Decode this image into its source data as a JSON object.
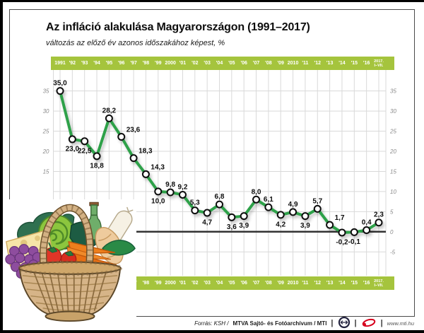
{
  "page": {
    "title": "Az infláció alakulása Magyarországon (1991–2017)",
    "subtitle": "változás az előző év azonos időszakához képest, %"
  },
  "footer": {
    "source_prefix": "Forrás: KSH /",
    "source_bold": "MTVA Sajtó- és Fotóarchívum / MTI",
    "separator": "|",
    "website": "www.mti.hu"
  },
  "icons": {
    "mtva_logo": "mtva-circle-arrows-logo",
    "mti_logo": "mti-red-ellipse-logo",
    "basket": "food-basket-illustration"
  },
  "colors": {
    "bar_green": "#a5c43d",
    "line_green": "#2da14a",
    "grid": "#d9d9d9",
    "zero_line": "#333333",
    "axis_text": "#8a8a8a",
    "label_text": "#0d0d0d",
    "marker_fill": "#ffffff",
    "marker_stroke": "#111111",
    "mti_red": "#d6001c"
  },
  "chart_data": {
    "type": "line",
    "title": "Az infláció alakulása Magyarországon (1991–2017)",
    "ylabel": "változás az előző év azonos időszakához képest, %",
    "x_labels": [
      "1991",
      "'92",
      "'93",
      "'94",
      "'95",
      "'96",
      "'97",
      "'98",
      "'99",
      "2000",
      "'01",
      "'02",
      "'03",
      "'04",
      "'05",
      "'06",
      "'07",
      "'08",
      "'09",
      "2010",
      "'11",
      "'12",
      "'13",
      "'14",
      "'15",
      "'16",
      "2017. I–VII."
    ],
    "values": [
      35.0,
      23.0,
      22.5,
      18.8,
      28.2,
      23.6,
      18.3,
      14.3,
      10.0,
      9.8,
      9.2,
      5.3,
      4.7,
      6.8,
      3.6,
      3.9,
      8.0,
      6.1,
      4.2,
      4.9,
      3.9,
      5.7,
      1.7,
      -0.2,
      -0.1,
      0.4,
      2.3
    ],
    "value_labels": [
      "35,0",
      "23,0",
      "22,5",
      "18,8",
      "28,2",
      "23,6",
      "18,3",
      "14,3",
      "10,0",
      "9,8",
      "9,2",
      "5,3",
      "4,7",
      "6,8",
      "3,6",
      "3,9",
      "8,0",
      "6,1",
      "4,2",
      "4,9",
      "3,9",
      "5,7",
      "1,7",
      "-0,2",
      "-0,1",
      "0,4",
      "2,3"
    ],
    "label_pos": [
      "a",
      "b",
      "b",
      "b",
      "a",
      "ar",
      "ar",
      "ar",
      "b",
      "a",
      "a",
      "a",
      "b",
      "a",
      "b",
      "b",
      "a",
      "a",
      "b",
      "a",
      "b",
      "a",
      "ar",
      "b",
      "b",
      "a",
      "a"
    ],
    "y_ticks": [
      35,
      30,
      25,
      20,
      15,
      10,
      5,
      0,
      -5
    ],
    "left_tick_count": 5,
    "ylim": [
      -5,
      36
    ],
    "grid": true,
    "legend": "none",
    "bottom_axis_start_index": 6
  }
}
